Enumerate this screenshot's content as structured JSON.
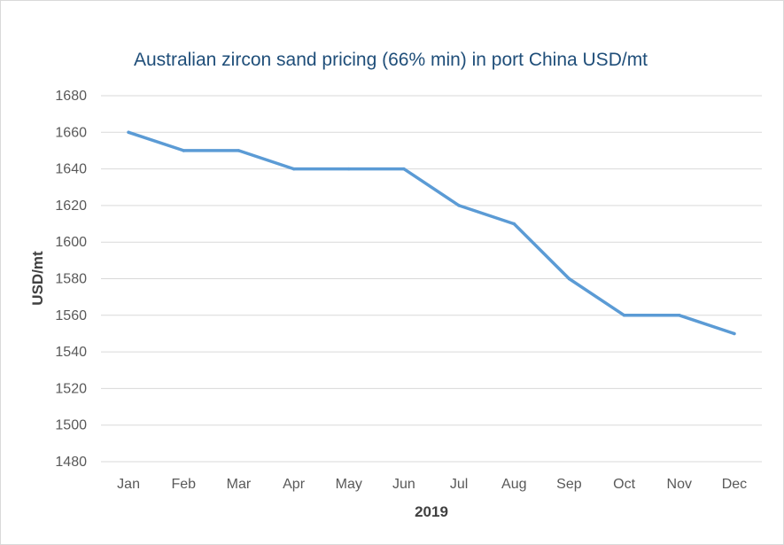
{
  "chart_data": {
    "type": "line",
    "title": "Australian zircon sand pricing (66% min) in port China USD/mt",
    "xlabel": "2019",
    "ylabel": "USD/mt",
    "categories": [
      "Jan",
      "Feb",
      "Mar",
      "Apr",
      "May",
      "Jun",
      "Jul",
      "Aug",
      "Sep",
      "Oct",
      "Nov",
      "Dec"
    ],
    "series": [
      {
        "name": "Price",
        "values": [
          1660,
          1650,
          1650,
          1640,
          1640,
          1640,
          1620,
          1610,
          1580,
          1560,
          1560,
          1550
        ],
        "color": "#5b9bd5"
      }
    ],
    "ylim": [
      1480,
      1680
    ],
    "yticks": [
      1480,
      1500,
      1520,
      1540,
      1560,
      1580,
      1600,
      1620,
      1640,
      1660,
      1680
    ],
    "grid": true,
    "legend": "none"
  }
}
